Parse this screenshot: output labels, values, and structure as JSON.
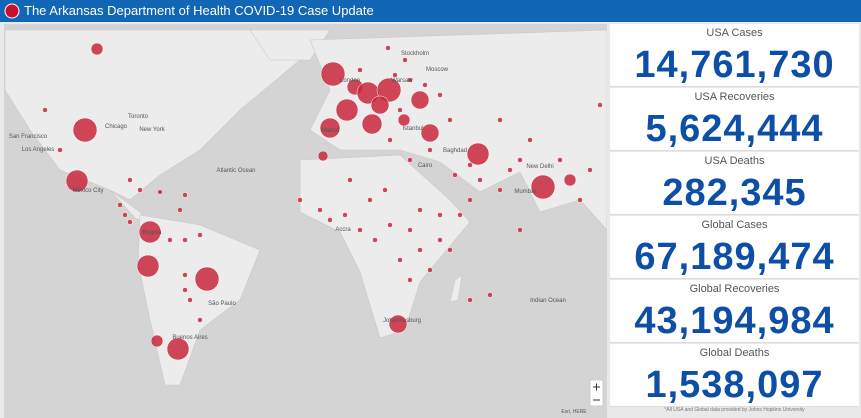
{
  "header": {
    "title": "The Arkansas Department of Health COVID-19 Case Update"
  },
  "map": {
    "labels": [
      "Stockholm",
      "Moscow",
      "London",
      "Warsaw",
      "Madrid",
      "Istanbul",
      "Baghdad",
      "Cairo",
      "New Delhi",
      "Mumbai",
      "Toronto",
      "Chicago",
      "New York",
      "San Francisco",
      "Los Angeles",
      "Mexico City",
      "Bogotá",
      "São Paulo",
      "Buenos Aires",
      "Johannesburg",
      "Accra",
      "Atlantic Ocean",
      "Indian Ocean"
    ],
    "attribution": "Esri, HERE"
  },
  "stats": [
    {
      "label": "USA Cases",
      "value": "14,761,730"
    },
    {
      "label": "USA Recoveries",
      "value": "5,624,444"
    },
    {
      "label": "USA Deaths",
      "value": "282,345"
    },
    {
      "label": "Global Cases",
      "value": "67,189,474"
    },
    {
      "label": "Global Recoveries",
      "value": "43,194,984"
    },
    {
      "label": "Global Deaths",
      "value": "1,538,097"
    }
  ],
  "footnote": "*All USA and Global data provided by Johns Hopkins University"
}
